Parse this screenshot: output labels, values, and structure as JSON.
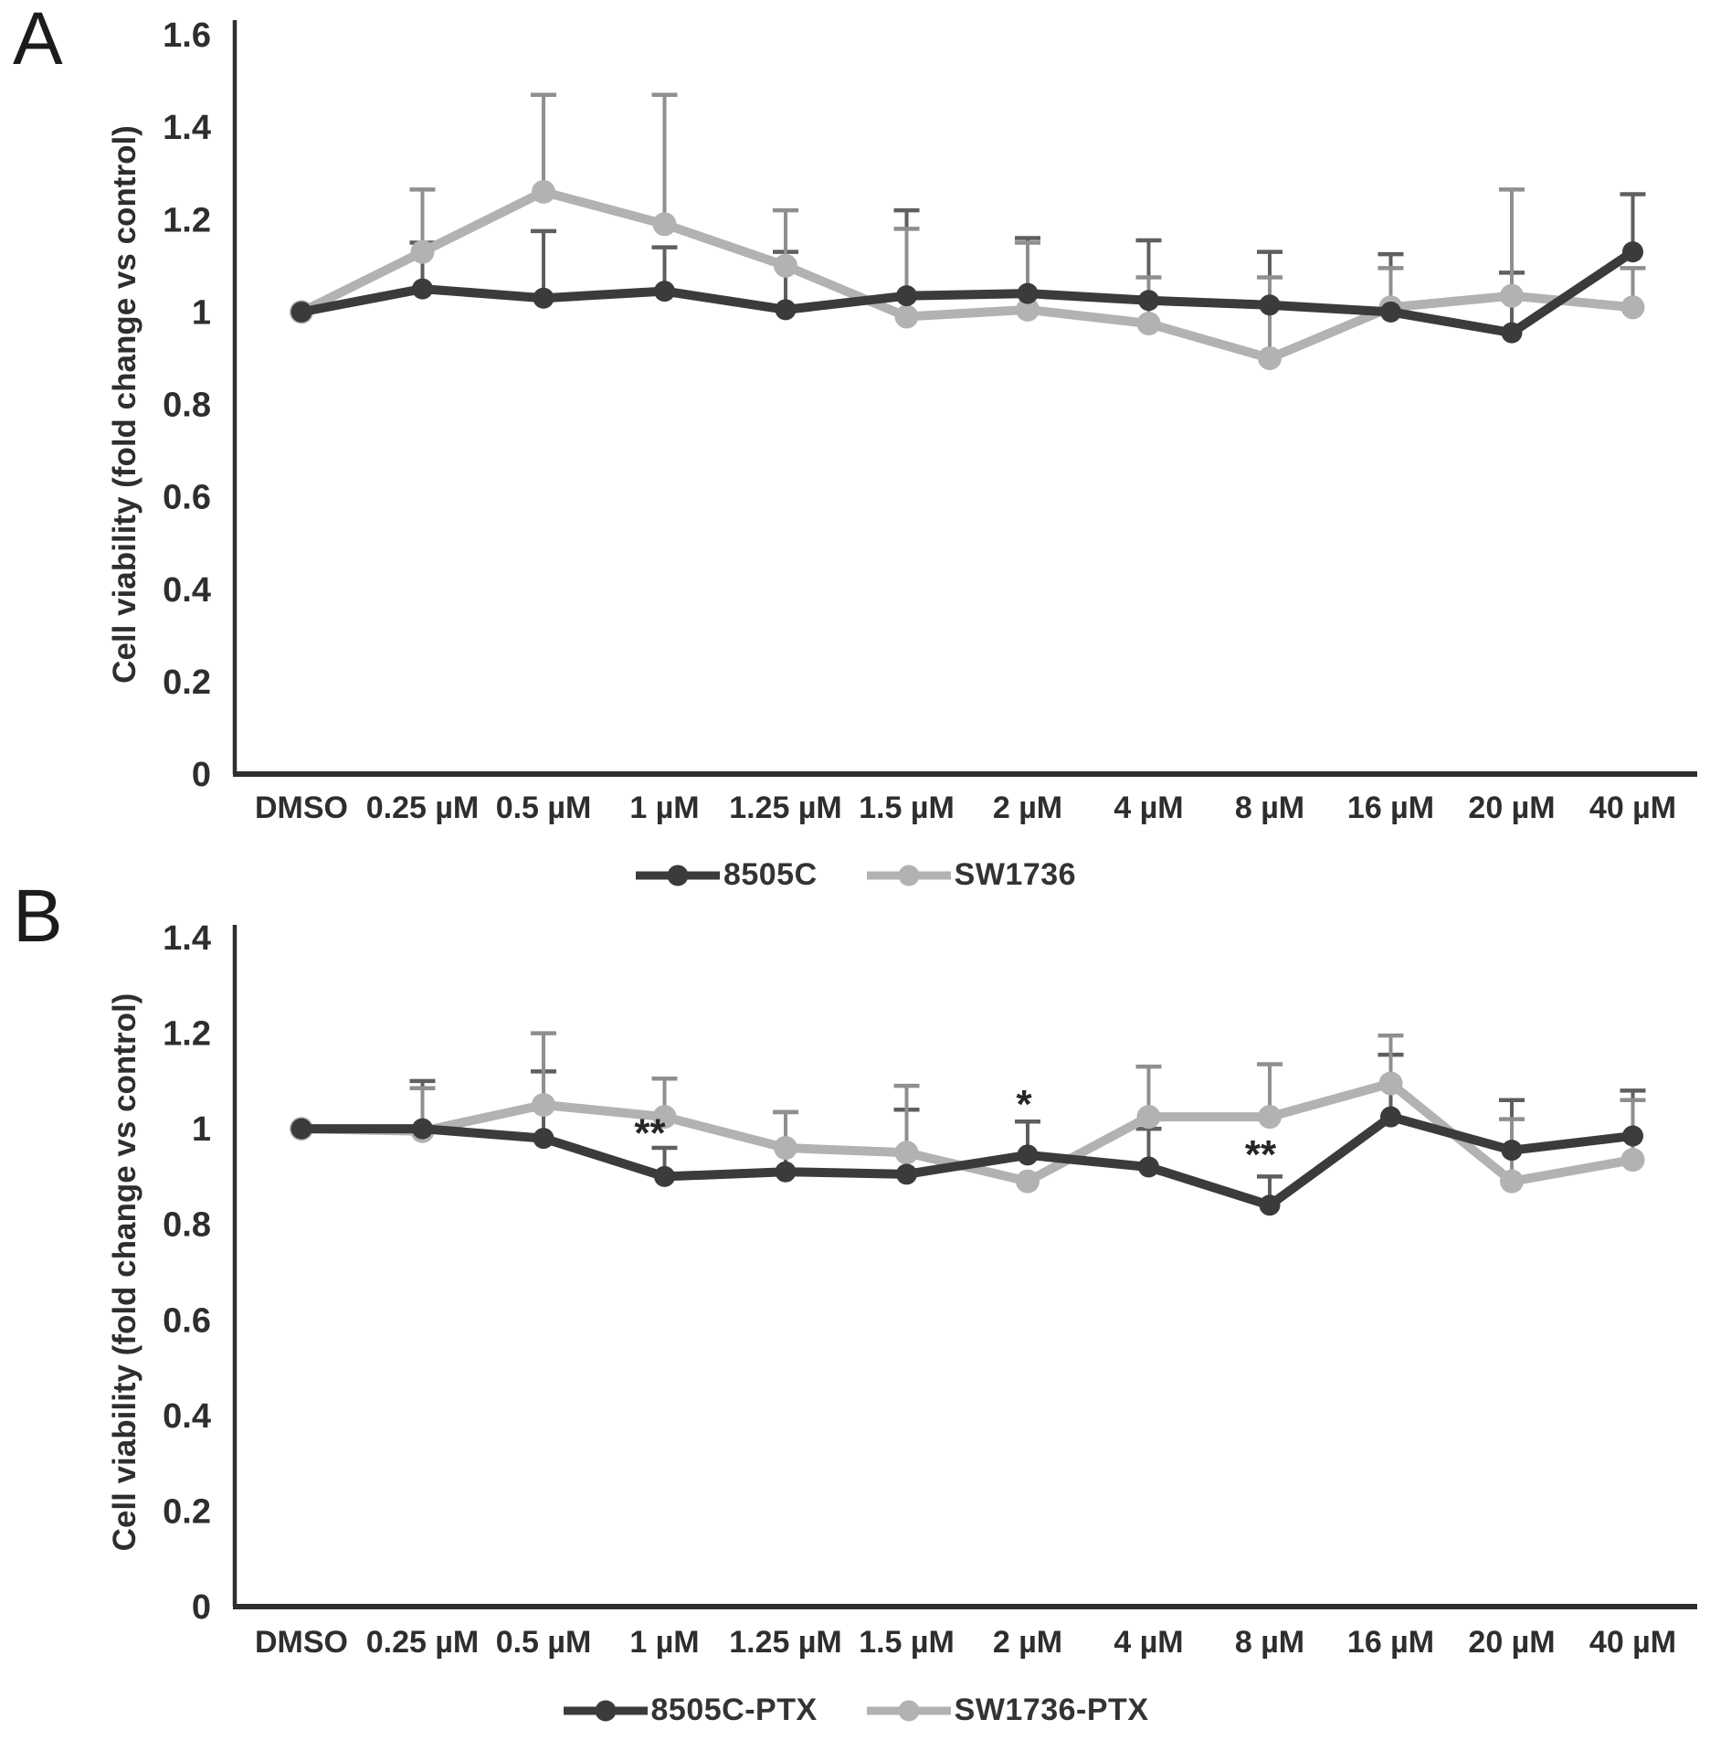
{
  "panels": [
    {
      "letter": "A"
    },
    {
      "letter": "B"
    }
  ],
  "colors": {
    "dark_series": "#3b3b3b",
    "gray_series": "#b2b2b2",
    "dark_errbar": "#5f5f5f",
    "gray_errbar": "#8f8f8f",
    "axis": "#2e2e2e",
    "text": "#2e2e2e"
  },
  "chart_data": [
    {
      "type": "line",
      "panel": "A",
      "title": "",
      "xlabel": "",
      "ylabel": "Cell viability (fold change vs control)",
      "ylim": [
        0,
        1.6
      ],
      "yticks": [
        0,
        0.2,
        0.4,
        0.6,
        0.8,
        1,
        1.2,
        1.4,
        1.6
      ],
      "ytick_labels": [
        "0",
        "0.2",
        "0.4",
        "0.6",
        "0.8",
        "1",
        "1.2",
        "1.4",
        "1.6"
      ],
      "grid": false,
      "legend_position": "bottom",
      "categories": [
        "DMSO",
        "0.25 µM",
        "0.5 µM",
        "1 µM",
        "1.25 µM",
        "1.5 µM",
        "2 µM",
        "4 µM",
        "8 µM",
        "16 µM",
        "20 µM",
        "40 µM"
      ],
      "series": [
        {
          "name": "8505C",
          "color": "#3b3b3b",
          "err_color": "#5f5f5f",
          "values": [
            1.0,
            1.05,
            1.03,
            1.045,
            1.005,
            1.035,
            1.04,
            1.025,
            1.015,
            1.0,
            0.955,
            1.13
          ],
          "err_up": [
            0,
            0.1,
            0.145,
            0.095,
            0.125,
            0.185,
            0.12,
            0.13,
            0.115,
            0.125,
            0.13,
            0.125
          ]
        },
        {
          "name": "SW1736",
          "color": "#b2b2b2",
          "err_color": "#8f8f8f",
          "values": [
            1.0,
            1.13,
            1.26,
            1.19,
            1.1,
            0.99,
            1.005,
            0.975,
            0.9,
            1.01,
            1.035,
            1.01
          ],
          "err_up": [
            0,
            0.135,
            0.21,
            0.28,
            0.12,
            0.19,
            0.145,
            0.1,
            0.175,
            0.085,
            0.23,
            0.085
          ]
        }
      ],
      "annotations": []
    },
    {
      "type": "line",
      "panel": "B",
      "title": "",
      "xlabel": "",
      "ylabel": "Cell viability (fold change vs control)",
      "ylim": [
        0,
        1.4
      ],
      "yticks": [
        0,
        0.2,
        0.4,
        0.6,
        0.8,
        1,
        1.2,
        1.4
      ],
      "ytick_labels": [
        "0",
        "0.2",
        "0.4",
        "0.6",
        "0.8",
        "1",
        "1.2",
        "1.4"
      ],
      "grid": false,
      "legend_position": "bottom",
      "categories": [
        "DMSO",
        "0.25 µM",
        "0.5 µM",
        "1 µM",
        "1.25 µM",
        "1.5 µM",
        "2 µM",
        "4 µM",
        "8 µM",
        "16 µM",
        "20 µM",
        "40 µM"
      ],
      "series": [
        {
          "name": "8505C-PTX",
          "color": "#3b3b3b",
          "err_color": "#5f5f5f",
          "values": [
            1.0,
            1.0,
            0.98,
            0.9,
            0.91,
            0.905,
            0.945,
            0.92,
            0.84,
            1.025,
            0.955,
            0.985
          ],
          "err_up": [
            0,
            0.1,
            0.14,
            0.06,
            0.125,
            0.135,
            0.07,
            0.08,
            0.06,
            0.13,
            0.105,
            0.095
          ]
        },
        {
          "name": "SW1736-PTX",
          "color": "#b2b2b2",
          "err_color": "#8f8f8f",
          "values": [
            1.0,
            0.995,
            1.05,
            1.025,
            0.96,
            0.95,
            0.89,
            1.025,
            1.025,
            1.095,
            0.89,
            0.935
          ],
          "err_up": [
            0,
            0.09,
            0.15,
            0.08,
            0.075,
            0.14,
            0,
            0.105,
            0.11,
            0.1,
            0.13,
            0.125
          ]
        }
      ],
      "annotations": [
        {
          "text": "**",
          "category": "1 µM",
          "value": 0.99,
          "dx": -16,
          "series": "8505C-PTX"
        },
        {
          "text": "*",
          "category": "2 µM",
          "value": 1.05,
          "dx": -4,
          "series": "8505C-PTX"
        },
        {
          "text": "**",
          "category": "8 µM",
          "value": 0.945,
          "dx": -10,
          "series": "8505C-PTX"
        }
      ]
    }
  ]
}
